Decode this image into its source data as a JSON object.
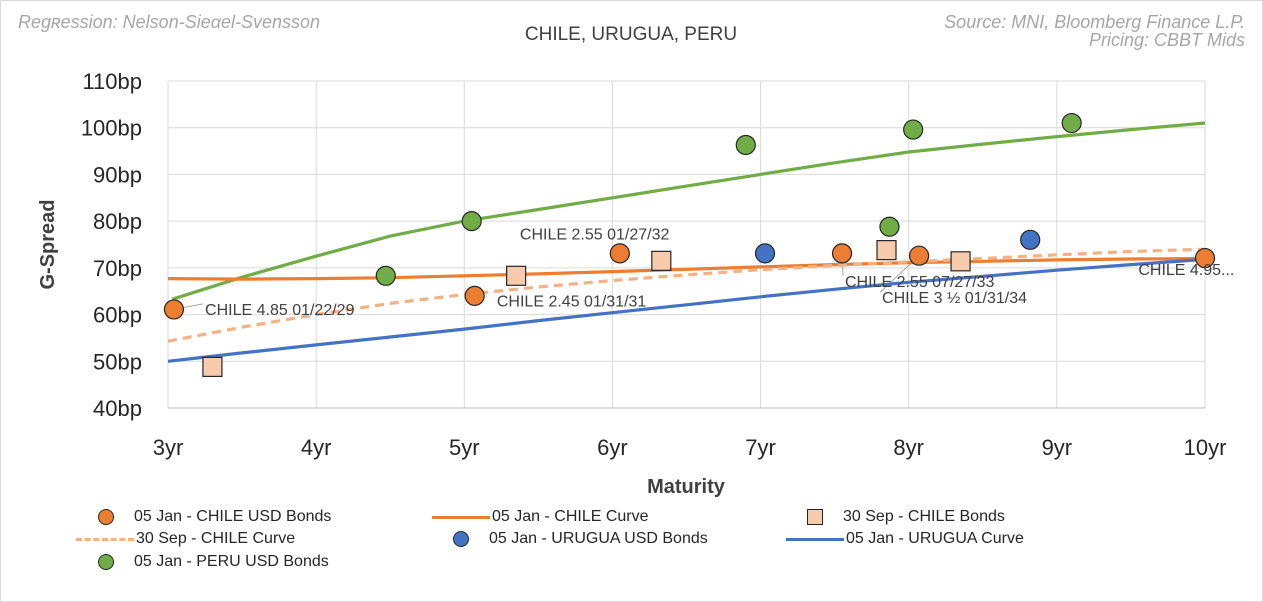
{
  "header": {
    "left": "Regʀession: Nelson-Sieαel-Svensson",
    "source": "Source: MNI, Bloomberg Finance L.P.",
    "pricing": "Pricing: CBBT Mids"
  },
  "colors": {
    "chile": "#ed7d31",
    "chile_old": "#f8cbad",
    "chile_old_curve": "#f4b183",
    "urugua": "#4472c4",
    "peru": "#70ad47",
    "grid": "#d9d9d9",
    "axis_text": "#262626"
  },
  "chart_data": {
    "type": "scatter",
    "title": "CHILE, URUGUA, PERU",
    "xlabel": "Maturity",
    "ylabel": "G-Spread",
    "xlim": [
      3,
      10
    ],
    "ylim": [
      40,
      110
    ],
    "xticks": [
      3,
      4,
      5,
      6,
      7,
      8,
      9,
      10
    ],
    "xtick_labels": [
      "3yr",
      "4yr",
      "5yr",
      "6yr",
      "7yr",
      "8yr",
      "9yr",
      "10yr"
    ],
    "yticks": [
      40,
      50,
      60,
      70,
      80,
      90,
      100,
      110
    ],
    "ytick_labels": [
      "40bp",
      "50bp",
      "60bp",
      "70bp",
      "80bp",
      "90bp",
      "100bp",
      "110bp"
    ],
    "grid": true,
    "series": [
      {
        "name": "05 Jan - PERU  USD Bonds",
        "kind": "points",
        "marker": "circle",
        "color": "#70ad47",
        "points": [
          [
            4.47,
            68.3
          ],
          [
            5.05,
            80.0
          ],
          [
            6.9,
            96.3
          ],
          [
            7.87,
            78.8
          ],
          [
            8.03,
            99.6
          ],
          [
            9.1,
            101.0
          ]
        ]
      },
      {
        "name": "05 Jan - PERU Curve",
        "kind": "line",
        "color": "#70ad47",
        "dashed": false,
        "in_legend": false,
        "points": [
          [
            3.03,
            63.3
          ],
          [
            3.5,
            68.0
          ],
          [
            4.0,
            72.5
          ],
          [
            4.5,
            76.8
          ],
          [
            5.0,
            80.0
          ],
          [
            5.5,
            82.5
          ],
          [
            6.0,
            85.0
          ],
          [
            6.5,
            87.5
          ],
          [
            7.0,
            90.0
          ],
          [
            7.5,
            92.5
          ],
          [
            8.0,
            94.8
          ],
          [
            8.5,
            96.5
          ],
          [
            9.0,
            98.1
          ],
          [
            9.5,
            99.6
          ],
          [
            10.0,
            101.0
          ]
        ]
      },
      {
        "name": "05 Jan - CHILE Curve",
        "kind": "line",
        "color": "#ed7d31",
        "dashed": false,
        "points": [
          [
            3.0,
            67.7
          ],
          [
            3.5,
            67.6
          ],
          [
            4.0,
            67.7
          ],
          [
            4.5,
            67.9
          ],
          [
            5.0,
            68.3
          ],
          [
            5.5,
            68.7
          ],
          [
            6.0,
            69.2
          ],
          [
            6.5,
            69.7
          ],
          [
            7.0,
            70.2
          ],
          [
            7.5,
            70.7
          ],
          [
            8.0,
            71.1
          ],
          [
            8.5,
            71.4
          ],
          [
            9.0,
            71.7
          ],
          [
            9.5,
            71.9
          ],
          [
            10.0,
            72.0
          ]
        ]
      },
      {
        "name": "30 Sep - CHILE Curve",
        "kind": "line",
        "color": "#f4b183",
        "dashed": true,
        "points": [
          [
            3.0,
            54.3
          ],
          [
            3.5,
            57.3
          ],
          [
            4.0,
            60.0
          ],
          [
            4.5,
            62.4
          ],
          [
            5.0,
            64.3
          ],
          [
            5.5,
            65.9
          ],
          [
            6.0,
            67.3
          ],
          [
            6.5,
            68.5
          ],
          [
            7.0,
            69.6
          ],
          [
            7.5,
            70.5
          ],
          [
            8.0,
            71.3
          ],
          [
            8.5,
            72.0
          ],
          [
            9.0,
            72.8
          ],
          [
            9.5,
            73.5
          ],
          [
            10.0,
            74.0
          ]
        ]
      },
      {
        "name": "05 Jan - URUGUA Curve",
        "kind": "line",
        "color": "#4472c4",
        "dashed": false,
        "points": [
          [
            3.0,
            50.0
          ],
          [
            3.5,
            51.8
          ],
          [
            4.0,
            53.5
          ],
          [
            4.5,
            55.2
          ],
          [
            5.0,
            56.9
          ],
          [
            5.5,
            58.7
          ],
          [
            6.0,
            60.4
          ],
          [
            6.5,
            62.1
          ],
          [
            7.0,
            63.8
          ],
          [
            7.5,
            65.4
          ],
          [
            8.0,
            66.9
          ],
          [
            8.5,
            68.2
          ],
          [
            9.0,
            69.5
          ],
          [
            9.5,
            70.7
          ],
          [
            10.0,
            71.8
          ]
        ]
      },
      {
        "name": "30 Sep - CHILE Bonds",
        "kind": "points",
        "marker": "square",
        "color": "#f8cbad",
        "points": [
          [
            3.3,
            48.8
          ],
          [
            5.35,
            68.3
          ],
          [
            6.33,
            71.5
          ],
          [
            7.85,
            73.8
          ],
          [
            8.35,
            71.4
          ]
        ]
      },
      {
        "name": "05 Jan - URUGUA  USD Bonds",
        "kind": "points",
        "marker": "circle",
        "color": "#4472c4",
        "points": [
          [
            7.03,
            73.1
          ],
          [
            8.82,
            76.0
          ]
        ]
      },
      {
        "name": "05 Jan - CHILE  USD Bonds",
        "kind": "points",
        "marker": "circle",
        "color": "#ed7d31",
        "points": [
          [
            3.04,
            61.1
          ],
          [
            5.07,
            64.0
          ],
          [
            6.05,
            73.1
          ],
          [
            7.55,
            73.1
          ],
          [
            8.07,
            72.6
          ],
          [
            10.0,
            72.1
          ]
        ]
      }
    ],
    "annotations": [
      {
        "text": "CHILE 4.85 01/22/29",
        "anchor": [
          3.04,
          61.1
        ],
        "label_at": [
          3.25,
          61.0
        ],
        "leader": true,
        "align": "start"
      },
      {
        "text": "CHILE 2.45 01/31/31",
        "anchor": [
          5.07,
          64.0
        ],
        "label_at": [
          5.22,
          62.8
        ],
        "leader": false,
        "align": "start"
      },
      {
        "text": "CHILE 2.55 01/27/32",
        "anchor": [
          6.05,
          73.1
        ],
        "label_at": [
          5.88,
          77.1
        ],
        "leader": false,
        "align": "middle"
      },
      {
        "text": "CHILE 2.55 07/27/33",
        "anchor": [
          7.55,
          73.1
        ],
        "label_at": [
          7.57,
          67.0
        ],
        "leader": true,
        "align": "start"
      },
      {
        "text": "CHILE 3 ½ 01/31/34",
        "anchor": [
          8.07,
          72.6
        ],
        "label_at": [
          7.82,
          63.5
        ],
        "leader": true,
        "align": "start"
      },
      {
        "text": "CHILE 4.95...",
        "anchor": [
          10.0,
          72.1
        ],
        "label_at": [
          9.55,
          69.5
        ],
        "leader": false,
        "align": "start"
      }
    ]
  },
  "legend": {
    "items": [
      {
        "label": "05 Jan - CHILE  USD Bonds",
        "marker": "circle",
        "color": "#ed7d31"
      },
      {
        "label": "05 Jan - CHILE Curve",
        "marker": "line",
        "color": "#ed7d31"
      },
      {
        "label": "30 Sep - CHILE Bonds",
        "marker": "square",
        "color": "#f8cbad"
      },
      {
        "label": "30 Sep - CHILE Curve",
        "marker": "dash",
        "color": "#f4b183"
      },
      {
        "label": "05 Jan - URUGUA  USD Bonds",
        "marker": "circle",
        "color": "#4472c4"
      },
      {
        "label": "05 Jan - URUGUA Curve",
        "marker": "line",
        "color": "#4472c4"
      },
      {
        "label": "05 Jan - PERU  USD Bonds",
        "marker": "circle",
        "color": "#70ad47"
      }
    ]
  }
}
